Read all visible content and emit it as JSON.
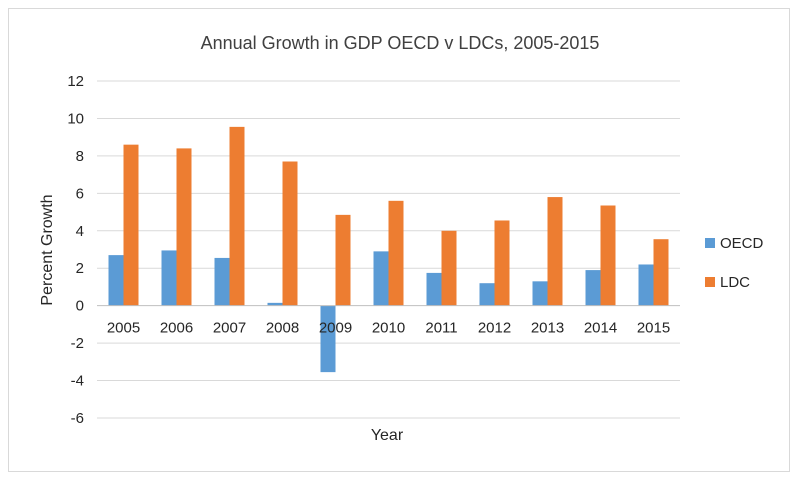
{
  "chart_data": {
    "type": "bar",
    "title": "Annual Growth in GDP OECD v LDCs, 2005-2015",
    "xlabel": "Year",
    "ylabel": "Percent Growth",
    "categories": [
      "2005",
      "2006",
      "2007",
      "2008",
      "2009",
      "2010",
      "2011",
      "2012",
      "2013",
      "2014",
      "2015"
    ],
    "series": [
      {
        "name": "OECD",
        "color": "#5b9bd5",
        "values": [
          2.7,
          2.95,
          2.55,
          0.15,
          -3.55,
          2.9,
          1.75,
          1.2,
          1.3,
          1.9,
          2.2
        ]
      },
      {
        "name": "LDC",
        "color": "#ed7d31",
        "values": [
          8.6,
          8.4,
          9.55,
          7.7,
          4.85,
          5.6,
          4.0,
          4.55,
          5.8,
          5.35,
          3.55
        ]
      }
    ],
    "ylim": [
      -6,
      12
    ],
    "yticks": [
      "12",
      "10",
      "8",
      "6",
      "4",
      "2",
      "0",
      "-2",
      "-4",
      "-6"
    ],
    "ytick_values": [
      12,
      10,
      8,
      6,
      4,
      2,
      0,
      -2,
      -4,
      -6
    ],
    "grid": true,
    "legend_position": "right"
  }
}
